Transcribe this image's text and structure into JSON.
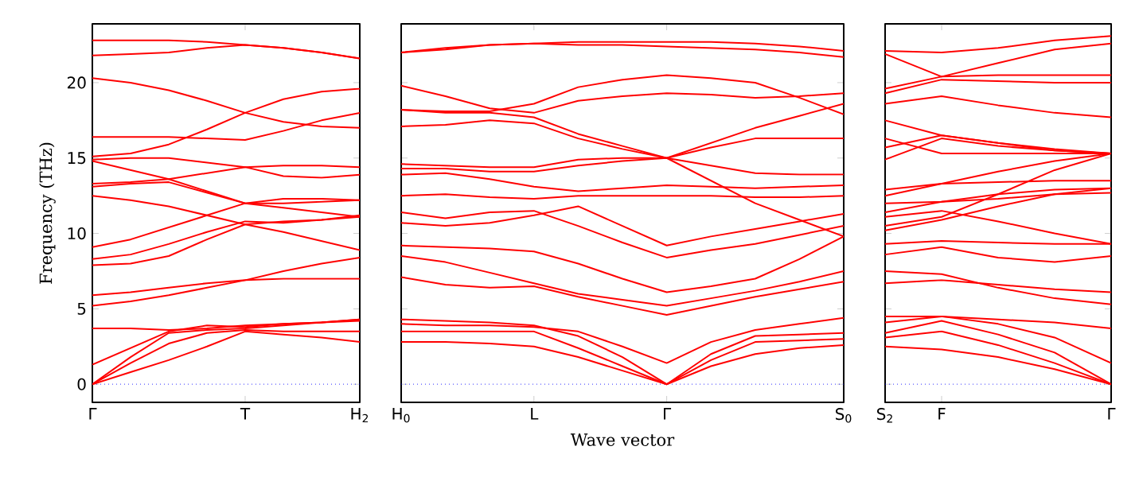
{
  "chart_data": [
    {
      "type": "line",
      "ylabel": "Frequency (THz)",
      "color": "#ff0000",
      "line_style": "solid",
      "marker": "none",
      "categories": [
        "Γ",
        null,
        null,
        null,
        "T",
        null,
        null,
        "H$_{2}$"
      ],
      "ylim": [
        -1.2,
        23.9
      ],
      "yticks": [
        0,
        5,
        10,
        15,
        20
      ],
      "ref_lines": [
        {
          "axis": "y",
          "value": 0,
          "color": "#0000ff",
          "line_style": "dotted"
        }
      ],
      "series": [
        {
          "values": [
            0,
            0.8,
            1.6,
            2.5,
            3.5,
            3.3,
            3.1,
            2.8
          ]
        },
        {
          "values": [
            0,
            1.4,
            2.7,
            3.4,
            3.6,
            3.5,
            3.5,
            3.5
          ]
        },
        {
          "values": [
            0,
            1.8,
            3.4,
            3.6,
            3.7,
            3.9,
            4.1,
            4.2
          ]
        },
        {
          "values": [
            1.3,
            2.4,
            3.5,
            3.9,
            3.8,
            4.0,
            4.1,
            4.3
          ]
        },
        {
          "values": [
            3.7,
            3.7,
            3.6,
            3.7,
            3.9,
            4.0,
            4.1,
            4.3
          ]
        },
        {
          "values": [
            5.2,
            5.5,
            5.9,
            6.4,
            6.9,
            7.5,
            8.0,
            8.4
          ]
        },
        {
          "values": [
            5.9,
            6.1,
            6.4,
            6.7,
            6.9,
            7.0,
            7.0,
            7.0
          ]
        },
        {
          "values": [
            7.9,
            8.0,
            8.5,
            9.6,
            10.6,
            10.8,
            10.9,
            11.1
          ]
        },
        {
          "values": [
            8.3,
            8.6,
            9.3,
            10.1,
            10.8,
            10.7,
            10.9,
            11.2
          ]
        },
        {
          "values": [
            9.1,
            9.6,
            10.4,
            11.2,
            12.0,
            12.3,
            12.3,
            12.2
          ]
        },
        {
          "values": [
            12.5,
            12.2,
            11.8,
            11.2,
            10.6,
            10.1,
            9.5,
            8.9
          ]
        },
        {
          "values": [
            13.1,
            13.3,
            13.4,
            12.7,
            12.0,
            11.7,
            11.4,
            11.1
          ]
        },
        {
          "values": [
            13.3,
            13.4,
            13.6,
            14.0,
            14.4,
            14.5,
            14.5,
            14.4
          ]
        },
        {
          "values": [
            14.8,
            14.2,
            13.6,
            12.8,
            12.0,
            12.0,
            12.1,
            12.2
          ]
        },
        {
          "values": [
            14.9,
            15.0,
            15.0,
            14.7,
            14.4,
            13.8,
            13.7,
            13.9
          ]
        },
        {
          "values": [
            15.1,
            15.3,
            15.9,
            16.9,
            18.0,
            18.9,
            19.4,
            19.6
          ]
        },
        {
          "values": [
            16.4,
            16.4,
            16.4,
            16.3,
            16.2,
            16.8,
            17.5,
            18.0
          ]
        },
        {
          "values": [
            20.3,
            20.0,
            19.5,
            18.8,
            18.0,
            17.4,
            17.1,
            17.0
          ]
        },
        {
          "values": [
            21.8,
            21.9,
            22.0,
            22.3,
            22.5,
            22.3,
            22.0,
            21.6
          ]
        },
        {
          "values": [
            22.8,
            22.8,
            22.8,
            22.7,
            22.5,
            22.3,
            22.0,
            21.6
          ]
        }
      ]
    },
    {
      "type": "line",
      "xlabel": "Wave vector",
      "color": "#ff0000",
      "line_style": "solid",
      "marker": "none",
      "tick_labels": "x",
      "categories": [
        "H$_{0}$",
        null,
        null,
        "L",
        null,
        null,
        "Γ",
        null,
        null,
        null,
        "S$_{0}$"
      ],
      "ylim": [
        -1.2,
        23.9
      ],
      "yticks": [
        0,
        5,
        10,
        15,
        20
      ],
      "ref_lines": [
        {
          "axis": "y",
          "value": 0,
          "color": "#0000ff",
          "line_style": "dotted"
        }
      ],
      "series": [
        {
          "values": [
            2.8,
            2.8,
            2.7,
            2.5,
            1.8,
            0.9,
            0,
            1.2,
            2.0,
            2.4,
            2.6
          ]
        },
        {
          "values": [
            3.5,
            3.5,
            3.5,
            3.5,
            2.4,
            1.2,
            0,
            1.6,
            2.8,
            2.9,
            3.0
          ]
        },
        {
          "values": [
            4.3,
            4.2,
            4.1,
            3.9,
            3.2,
            1.8,
            0,
            2.0,
            3.2,
            3.3,
            3.4
          ]
        },
        {
          "values": [
            4.0,
            3.9,
            3.9,
            3.8,
            3.5,
            2.5,
            1.4,
            2.8,
            3.6,
            4.0,
            4.4
          ]
        },
        {
          "values": [
            7.1,
            6.6,
            6.4,
            6.5,
            5.8,
            5.2,
            4.6,
            5.2,
            5.8,
            6.3,
            6.8
          ]
        },
        {
          "values": [
            8.5,
            8.1,
            7.4,
            6.7,
            6.0,
            5.6,
            5.2,
            5.7,
            6.2,
            6.8,
            7.5
          ]
        },
        {
          "values": [
            9.2,
            9.1,
            9.0,
            8.8,
            8.0,
            7.0,
            6.1,
            6.5,
            7.0,
            8.3,
            9.8
          ]
        },
        {
          "values": [
            11.4,
            11.0,
            11.4,
            11.5,
            10.5,
            9.4,
            8.4,
            8.9,
            9.3,
            9.9,
            10.5
          ]
        },
        {
          "values": [
            10.7,
            10.5,
            10.7,
            11.2,
            11.8,
            10.5,
            9.2,
            9.8,
            10.3,
            10.8,
            11.3
          ]
        },
        {
          "values": [
            12.5,
            12.6,
            12.4,
            12.3,
            12.5,
            12.5,
            12.5,
            12.5,
            12.4,
            12.4,
            12.5
          ]
        },
        {
          "values": [
            13.9,
            14.0,
            13.6,
            13.1,
            12.8,
            13.0,
            13.2,
            13.1,
            13.0,
            13.1,
            13.2
          ]
        },
        {
          "values": [
            14.6,
            14.5,
            14.4,
            14.4,
            14.9,
            15.0,
            15.0,
            14.5,
            14.0,
            13.9,
            13.9
          ]
        },
        {
          "values": [
            14.3,
            14.3,
            14.1,
            14.1,
            14.5,
            14.8,
            15.0,
            15.7,
            16.3,
            16.3,
            16.3
          ]
        },
        {
          "values": [
            17.1,
            17.2,
            17.5,
            17.3,
            16.3,
            15.6,
            15.0,
            13.5,
            12.0,
            10.9,
            9.8
          ]
        },
        {
          "values": [
            18.2,
            18.0,
            18.0,
            17.7,
            16.6,
            15.8,
            15.0,
            16.0,
            17.0,
            17.8,
            18.6
          ]
        },
        {
          "values": [
            19.8,
            19.1,
            18.3,
            18.0,
            18.8,
            19.1,
            19.3,
            19.2,
            19.0,
            19.1,
            19.3
          ]
        },
        {
          "values": [
            18.2,
            18.1,
            18.1,
            18.6,
            19.7,
            20.2,
            20.5,
            20.3,
            20.0,
            19.0,
            17.9
          ]
        },
        {
          "values": [
            22.0,
            22.3,
            22.5,
            22.6,
            22.7,
            22.7,
            22.7,
            22.7,
            22.6,
            22.4,
            22.1
          ]
        },
        {
          "values": [
            22.0,
            22.2,
            22.5,
            22.6,
            22.5,
            22.5,
            22.4,
            22.3,
            22.2,
            22.0,
            21.7
          ]
        }
      ]
    },
    {
      "type": "line",
      "color": "#ff0000",
      "line_style": "solid",
      "marker": "none",
      "tick_labels": "x",
      "categories": [
        "S$_{2}$",
        "F",
        null,
        null,
        "Γ"
      ],
      "ylim": [
        -1.2,
        23.9
      ],
      "yticks": [
        0,
        5,
        10,
        15,
        20
      ],
      "ref_lines": [
        {
          "axis": "y",
          "value": 0,
          "color": "#0000ff",
          "line_style": "dotted"
        }
      ],
      "series": [
        {
          "values": [
            2.5,
            2.3,
            1.8,
            1.0,
            0
          ]
        },
        {
          "values": [
            3.1,
            3.5,
            2.6,
            1.4,
            0
          ]
        },
        {
          "values": [
            3.4,
            4.2,
            3.3,
            2.1,
            0
          ]
        },
        {
          "values": [
            4.1,
            4.5,
            4.0,
            3.1,
            1.4
          ]
        },
        {
          "values": [
            4.5,
            4.5,
            4.3,
            4.1,
            3.7
          ]
        },
        {
          "values": [
            6.7,
            6.9,
            6.6,
            6.3,
            6.1
          ]
        },
        {
          "values": [
            7.5,
            7.3,
            6.4,
            5.7,
            5.3
          ]
        },
        {
          "values": [
            8.6,
            9.1,
            8.4,
            8.1,
            8.5
          ]
        },
        {
          "values": [
            9.3,
            9.5,
            9.4,
            9.3,
            9.3
          ]
        },
        {
          "values": [
            10.2,
            10.9,
            11.8,
            12.6,
            13.0
          ]
        },
        {
          "values": [
            10.5,
            11.1,
            12.6,
            14.2,
            15.3
          ]
        },
        {
          "values": [
            11.1,
            11.5,
            10.8,
            10.0,
            9.3
          ]
        },
        {
          "values": [
            11.4,
            12.1,
            12.3,
            12.6,
            12.7
          ]
        },
        {
          "values": [
            12.0,
            12.1,
            12.6,
            12.9,
            13.0
          ]
        },
        {
          "values": [
            12.5,
            13.3,
            13.4,
            13.5,
            13.5
          ]
        },
        {
          "values": [
            12.9,
            13.3,
            14.1,
            14.8,
            15.3
          ]
        },
        {
          "values": [
            14.9,
            16.3,
            15.8,
            15.5,
            15.3
          ]
        },
        {
          "values": [
            15.7,
            16.5,
            16.0,
            15.5,
            15.3
          ]
        },
        {
          "values": [
            16.3,
            15.3,
            15.3,
            15.3,
            15.3
          ]
        },
        {
          "values": [
            17.5,
            16.5,
            16.0,
            15.6,
            15.3
          ]
        },
        {
          "values": [
            18.6,
            19.1,
            18.5,
            18.0,
            17.7
          ]
        },
        {
          "values": [
            19.3,
            20.2,
            20.1,
            20.0,
            20.0
          ]
        },
        {
          "values": [
            19.6,
            20.4,
            20.5,
            20.5,
            20.5
          ]
        },
        {
          "values": [
            21.9,
            20.4,
            21.3,
            22.2,
            22.6
          ]
        },
        {
          "values": [
            22.1,
            22.0,
            22.3,
            22.8,
            23.1
          ]
        }
      ]
    }
  ]
}
